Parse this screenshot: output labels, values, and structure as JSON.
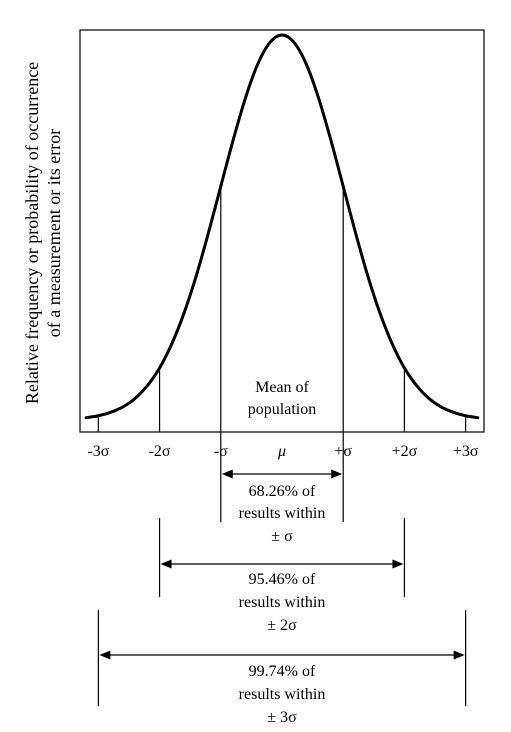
{
  "chart_data": {
    "type": "line",
    "title": "",
    "xlabel": "",
    "ylabel": "Relative frequency or probability of occurrence of a measurement or its error",
    "ylabel_lines": [
      "Relative frequency or probability of occurrence",
      "of a measurement or its error"
    ],
    "xlim": [
      -3.3,
      3.3
    ],
    "ylim": [
      0,
      1
    ],
    "grid": false,
    "legend": "none",
    "curve": {
      "name": "",
      "x": [
        -3.2,
        -3.0,
        -2.8,
        -2.6,
        -2.4,
        -2.2,
        -2.0,
        -1.8,
        -1.6,
        -1.4,
        -1.2,
        -1.0,
        -0.8,
        -0.6,
        -0.4,
        -0.2,
        0.0,
        0.2,
        0.4,
        0.6,
        0.8,
        1.0,
        1.2,
        1.4,
        1.6,
        1.8,
        2.0,
        2.2,
        2.4,
        2.6,
        2.8,
        3.0,
        3.2
      ],
      "y": [
        0.006,
        0.011,
        0.02,
        0.034,
        0.056,
        0.089,
        0.135,
        0.198,
        0.278,
        0.375,
        0.487,
        0.607,
        0.726,
        0.835,
        0.923,
        0.98,
        1.0,
        0.98,
        0.923,
        0.835,
        0.726,
        0.607,
        0.487,
        0.375,
        0.278,
        0.198,
        0.135,
        0.089,
        0.056,
        0.034,
        0.02,
        0.011,
        0.006
      ]
    },
    "vertical_lines": [
      {
        "x": -3,
        "y": 0.011
      },
      {
        "x": -2,
        "y": 0.135
      },
      {
        "x": -1,
        "y": 0.607
      },
      {
        "x": 1,
        "y": 0.607
      },
      {
        "x": 2,
        "y": 0.135
      },
      {
        "x": 3,
        "y": 0.011
      }
    ],
    "tick_labels": [
      {
        "x": -3,
        "label": "-3σ"
      },
      {
        "x": -2,
        "label": "-2σ"
      },
      {
        "x": -1,
        "label": "-σ"
      },
      {
        "x": 0,
        "label": "μ"
      },
      {
        "x": 1,
        "label": "+σ"
      },
      {
        "x": 2,
        "label": "+2σ"
      },
      {
        "x": 3,
        "label": "+3σ"
      }
    ],
    "annotations": {
      "mean": {
        "x": 0,
        "lines": [
          "Mean of",
          "population"
        ]
      }
    },
    "ranges": [
      {
        "from": -1,
        "to": 1,
        "percent": 68.26,
        "lines": [
          "68.26% of",
          "results within",
          "± σ"
        ]
      },
      {
        "from": -2,
        "to": 2,
        "percent": 95.46,
        "lines": [
          "95.46% of",
          "results within",
          "± 2σ"
        ]
      },
      {
        "from": -3,
        "to": 3,
        "percent": 99.74,
        "lines": [
          "99.74% of",
          "results within",
          "± 3σ"
        ]
      }
    ]
  }
}
